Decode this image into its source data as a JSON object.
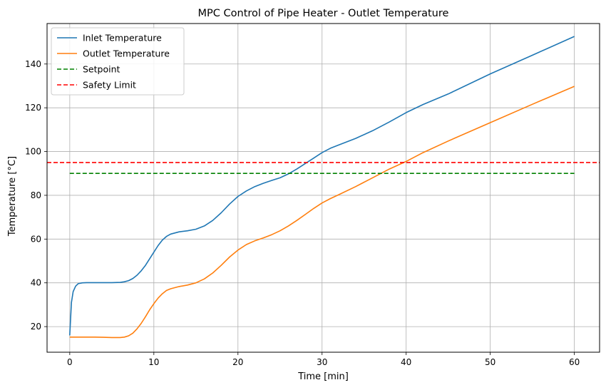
{
  "chart_data": {
    "type": "line",
    "title": "MPC Control of Pipe Heater - Outlet Temperature",
    "xlabel": "Time [min]",
    "ylabel": "Temperature [°C]",
    "xlim": [
      -2.7,
      63
    ],
    "ylim": [
      8.3,
      158.5
    ],
    "xticks": [
      0,
      10,
      20,
      30,
      40,
      50,
      60
    ],
    "yticks": [
      20,
      40,
      60,
      80,
      100,
      120,
      140
    ],
    "grid": true,
    "legend_position": "upper-left",
    "series": [
      {
        "name": "Inlet Temperature",
        "color": "#1f77b4",
        "style": "solid",
        "x": [
          0,
          0.2,
          0.4,
          0.7,
          1,
          1.5,
          2,
          3,
          4,
          5,
          6,
          6.5,
          7,
          7.5,
          8,
          8.5,
          9,
          9.5,
          10,
          10.5,
          11,
          11.5,
          12,
          13,
          14,
          15,
          16,
          17,
          18,
          19,
          20,
          21,
          22,
          23,
          24,
          25,
          26,
          27,
          28,
          29,
          30,
          31,
          32,
          34,
          36,
          38,
          40,
          42,
          45,
          50,
          55,
          60
        ],
        "values": [
          16,
          31,
          36,
          38.5,
          39.6,
          40,
          40.1,
          40.1,
          40.1,
          40.1,
          40.2,
          40.5,
          41,
          42,
          43.5,
          45.5,
          48,
          51,
          54,
          57,
          59.5,
          61.2,
          62.3,
          63.3,
          63.8,
          64.5,
          66,
          68.5,
          72,
          76,
          79.5,
          82,
          84,
          85.5,
          86.8,
          88,
          89.8,
          92,
          94.5,
          97,
          99.5,
          101.5,
          103,
          106,
          109.5,
          113.5,
          117.8,
          121.5,
          126.3,
          135.5,
          144,
          152.6
        ]
      },
      {
        "name": "Outlet Temperature",
        "color": "#ff7f0e",
        "style": "solid",
        "x": [
          0,
          1,
          2,
          3,
          4,
          5,
          6,
          6.5,
          7,
          7.5,
          8,
          8.5,
          9,
          9.5,
          10,
          10.5,
          11,
          11.5,
          12,
          13,
          14,
          15,
          16,
          17,
          18,
          19,
          20,
          21,
          22,
          23,
          24,
          25,
          26,
          27,
          28,
          29,
          30,
          31,
          32,
          34,
          36,
          38,
          40,
          42,
          45,
          50,
          55,
          60
        ],
        "values": [
          15.2,
          15.2,
          15.2,
          15.2,
          15.1,
          15,
          15,
          15.2,
          15.8,
          17,
          19,
          21.5,
          24.5,
          27.7,
          30.5,
          33,
          35,
          36.5,
          37.3,
          38.3,
          39,
          40,
          41.8,
          44.5,
          48,
          51.8,
          55,
          57.5,
          59.2,
          60.5,
          62,
          63.8,
          66,
          68.5,
          71.2,
          74,
          76.5,
          78.5,
          80.3,
          84,
          88,
          92,
          95.5,
          99.5,
          104.8,
          113.2,
          121.6,
          129.8
        ]
      },
      {
        "name": "Setpoint",
        "color": "#008000",
        "style": "dashed",
        "x": [
          0,
          60
        ],
        "values": [
          90,
          90
        ]
      },
      {
        "name": "Safety Limit",
        "color": "#ff0000",
        "style": "dashed",
        "x": [
          -2.7,
          63
        ],
        "values": [
          95,
          95
        ]
      }
    ]
  }
}
